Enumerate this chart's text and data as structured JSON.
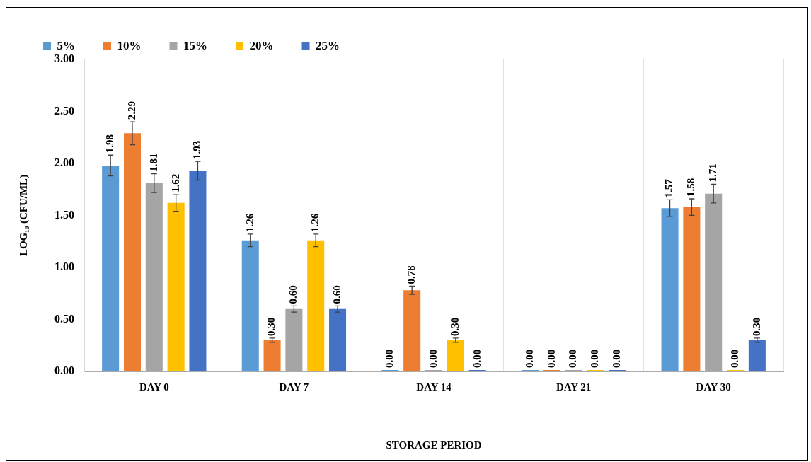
{
  "chart_data": {
    "type": "bar",
    "xlabel": "STORAGE PERIOD",
    "ylabel": "LOG₁₀ (CFU/ML)",
    "categories": [
      "DAY 0",
      "DAY 7",
      "DAY 14",
      "DAY 21",
      "DAY 30"
    ],
    "series": [
      {
        "name": "5%",
        "color": "#5b9bd5",
        "values": [
          1.98,
          1.26,
          0.0,
          0.0,
          1.57
        ],
        "errors": [
          0.1,
          0.06,
          null,
          null,
          0.08
        ],
        "value_labels": [
          "1.98",
          "1.26",
          "0.00",
          "0.00",
          "1.57"
        ]
      },
      {
        "name": "10%",
        "color": "#ed7d31",
        "values": [
          2.29,
          0.3,
          0.78,
          0.0,
          1.58
        ],
        "errors": [
          0.11,
          0.02,
          0.04,
          null,
          0.08
        ],
        "value_labels": [
          "2.29",
          "0.30",
          "0.78",
          "0.00",
          "1.58"
        ]
      },
      {
        "name": "15%",
        "color": "#a5a5a5",
        "values": [
          1.81,
          0.6,
          0.0,
          0.0,
          1.71
        ],
        "errors": [
          0.09,
          0.03,
          null,
          null,
          0.09
        ],
        "value_labels": [
          "1.81",
          "0.60",
          "0.00",
          "0.00",
          "1.71"
        ]
      },
      {
        "name": "20%",
        "color": "#ffc000",
        "values": [
          1.62,
          1.26,
          0.3,
          0.0,
          0.0
        ],
        "errors": [
          0.08,
          0.06,
          0.02,
          null,
          null
        ],
        "value_labels": [
          "1.62",
          "1.26",
          "0.30",
          "0.00",
          "0.00"
        ]
      },
      {
        "name": "25%",
        "color": "#4472c4",
        "values": [
          1.93,
          0.6,
          0.0,
          0.0,
          0.3
        ],
        "errors": [
          0.09,
          0.03,
          null,
          null,
          0.02
        ],
        "value_labels": [
          "1.93",
          "0.60",
          "0.00",
          "0.00",
          "0.30"
        ]
      }
    ],
    "ylim": [
      0,
      3
    ],
    "yticks": [
      {
        "value": 0,
        "label": "0.00"
      },
      {
        "value": 0.5,
        "label": "0.50"
      },
      {
        "value": 1,
        "label": "1.00"
      },
      {
        "value": 1.5,
        "label": "1.50"
      },
      {
        "value": 2,
        "label": "2.00"
      },
      {
        "value": 2.5,
        "label": "2.50"
      },
      {
        "value": 3,
        "label": "3.00"
      }
    ],
    "grid": "x",
    "legend": "top left"
  }
}
